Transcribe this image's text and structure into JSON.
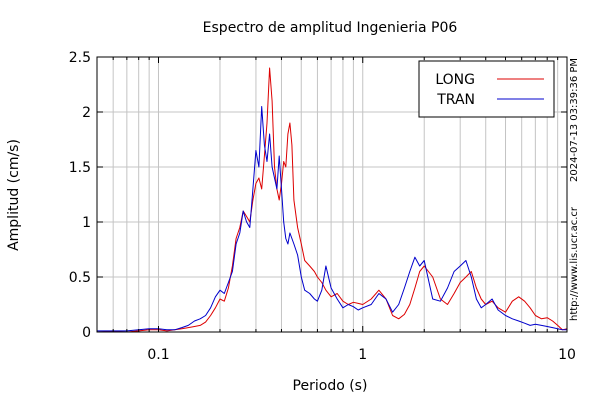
{
  "chart_data": {
    "type": "line",
    "title": "Espectro de amplitud Ingenieria P06",
    "xlabel": "Periodo (s)",
    "ylabel": "Amplitud (cm/s)",
    "x_scale": "log",
    "xlim": [
      0.05,
      10
    ],
    "ylim": [
      0,
      2.5
    ],
    "grid": true,
    "legend_position": "top-right",
    "x_ticks": [
      {
        "value": 0.1,
        "label": "0.1"
      },
      {
        "value": 1,
        "label": "1"
      },
      {
        "value": 10,
        "label": "10"
      }
    ],
    "y_ticks": [
      {
        "value": 0,
        "label": "0"
      },
      {
        "value": 0.5,
        "label": "0.5"
      },
      {
        "value": 1,
        "label": "1"
      },
      {
        "value": 1.5,
        "label": "1.5"
      },
      {
        "value": 2,
        "label": "2"
      },
      {
        "value": 2.5,
        "label": "2.5"
      }
    ],
    "side_annotation": "http://www.lis.ucr.ac.cr",
    "timestamp": "2024-07-13 03:39:36 PM",
    "series": [
      {
        "name": "LONG",
        "color": "#dd0000",
        "x": [
          0.05,
          0.06,
          0.07,
          0.08,
          0.09,
          0.1,
          0.11,
          0.12,
          0.13,
          0.14,
          0.15,
          0.16,
          0.17,
          0.18,
          0.19,
          0.2,
          0.21,
          0.22,
          0.23,
          0.24,
          0.25,
          0.26,
          0.27,
          0.28,
          0.29,
          0.3,
          0.31,
          0.32,
          0.33,
          0.34,
          0.35,
          0.36,
          0.37,
          0.38,
          0.39,
          0.4,
          0.41,
          0.42,
          0.43,
          0.44,
          0.45,
          0.46,
          0.48,
          0.5,
          0.52,
          0.55,
          0.58,
          0.6,
          0.63,
          0.66,
          0.7,
          0.75,
          0.8,
          0.85,
          0.9,
          0.95,
          1.0,
          1.1,
          1.2,
          1.3,
          1.4,
          1.5,
          1.6,
          1.7,
          1.8,
          1.9,
          2.0,
          2.2,
          2.4,
          2.6,
          2.8,
          3.0,
          3.2,
          3.4,
          3.6,
          3.8,
          4.0,
          4.3,
          4.6,
          5.0,
          5.4,
          5.8,
          6.2,
          6.6,
          7.0,
          7.5,
          8.0,
          8.5,
          9.0,
          9.5,
          10.0
        ],
        "y": [
          0.0,
          0.01,
          0.0,
          0.01,
          0.02,
          0.02,
          0.01,
          0.02,
          0.03,
          0.04,
          0.05,
          0.06,
          0.09,
          0.15,
          0.22,
          0.3,
          0.28,
          0.4,
          0.6,
          0.85,
          0.95,
          1.1,
          1.05,
          1.0,
          1.2,
          1.35,
          1.4,
          1.3,
          1.6,
          1.9,
          2.4,
          2.1,
          1.5,
          1.3,
          1.2,
          1.35,
          1.55,
          1.5,
          1.8,
          1.9,
          1.7,
          1.2,
          0.95,
          0.8,
          0.65,
          0.6,
          0.55,
          0.5,
          0.45,
          0.38,
          0.32,
          0.35,
          0.28,
          0.25,
          0.27,
          0.26,
          0.25,
          0.3,
          0.38,
          0.3,
          0.15,
          0.12,
          0.16,
          0.25,
          0.4,
          0.55,
          0.6,
          0.5,
          0.3,
          0.25,
          0.35,
          0.45,
          0.5,
          0.55,
          0.4,
          0.3,
          0.25,
          0.28,
          0.22,
          0.18,
          0.28,
          0.32,
          0.28,
          0.22,
          0.15,
          0.12,
          0.13,
          0.1,
          0.06,
          0.02,
          0.03
        ]
      },
      {
        "name": "TRAN",
        "color": "#0000cc",
        "x": [
          0.05,
          0.06,
          0.07,
          0.08,
          0.09,
          0.1,
          0.11,
          0.12,
          0.13,
          0.14,
          0.15,
          0.16,
          0.17,
          0.18,
          0.19,
          0.2,
          0.21,
          0.22,
          0.23,
          0.24,
          0.25,
          0.26,
          0.27,
          0.28,
          0.29,
          0.3,
          0.31,
          0.32,
          0.33,
          0.34,
          0.35,
          0.36,
          0.37,
          0.38,
          0.39,
          0.4,
          0.41,
          0.42,
          0.43,
          0.44,
          0.45,
          0.46,
          0.48,
          0.5,
          0.52,
          0.55,
          0.58,
          0.6,
          0.63,
          0.66,
          0.7,
          0.75,
          0.8,
          0.85,
          0.9,
          0.95,
          1.0,
          1.1,
          1.2,
          1.3,
          1.4,
          1.5,
          1.6,
          1.7,
          1.8,
          1.9,
          2.0,
          2.2,
          2.4,
          2.6,
          2.8,
          3.0,
          3.2,
          3.4,
          3.6,
          3.8,
          4.0,
          4.3,
          4.6,
          5.0,
          5.4,
          5.8,
          6.2,
          6.6,
          7.0,
          7.5,
          8.0,
          8.5,
          9.0,
          9.5,
          10.0
        ],
        "y": [
          0.01,
          0.01,
          0.01,
          0.02,
          0.03,
          0.03,
          0.02,
          0.02,
          0.04,
          0.06,
          0.1,
          0.12,
          0.15,
          0.22,
          0.32,
          0.38,
          0.35,
          0.45,
          0.55,
          0.8,
          0.9,
          1.1,
          1.0,
          0.95,
          1.3,
          1.65,
          1.5,
          2.05,
          1.7,
          1.55,
          1.8,
          1.5,
          1.4,
          1.3,
          1.6,
          1.3,
          1.0,
          0.85,
          0.8,
          0.9,
          0.85,
          0.8,
          0.7,
          0.5,
          0.38,
          0.35,
          0.3,
          0.28,
          0.38,
          0.6,
          0.4,
          0.3,
          0.22,
          0.25,
          0.23,
          0.2,
          0.22,
          0.25,
          0.35,
          0.3,
          0.18,
          0.25,
          0.4,
          0.55,
          0.68,
          0.6,
          0.65,
          0.3,
          0.28,
          0.4,
          0.55,
          0.6,
          0.65,
          0.5,
          0.3,
          0.22,
          0.25,
          0.3,
          0.2,
          0.15,
          0.12,
          0.1,
          0.08,
          0.06,
          0.07,
          0.06,
          0.05,
          0.04,
          0.03,
          0.02,
          0.02
        ]
      }
    ]
  }
}
